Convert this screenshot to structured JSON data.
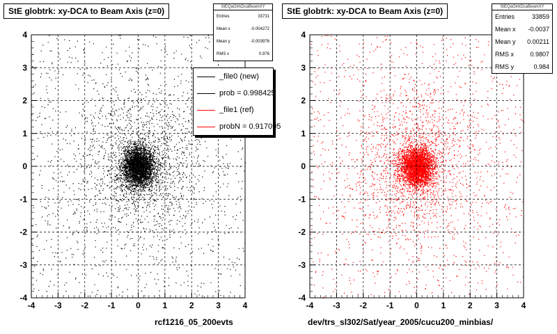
{
  "chart_data": [
    {
      "type": "scatter",
      "title": "StE globtrk: xy-DCA to Beam Axis (z=0)",
      "xlim": [
        -4,
        4
      ],
      "ylim": [
        -4,
        4
      ],
      "x_ticks": [
        "-4",
        "-3",
        "-2",
        "-1",
        "0",
        "1",
        "2",
        "3",
        "4"
      ],
      "y_ticks": [
        "-4",
        "-3",
        "-2",
        "-1",
        "0",
        "1",
        "2",
        "3",
        "4"
      ],
      "grid": true,
      "point_color": "#000000",
      "distribution": {
        "center_x": 0,
        "center_y": 0,
        "core_sigma": 0.3,
        "halo_sigma": 1.2
      },
      "stats": {
        "name": "StEQaGtrkDcaBeamXY",
        "rows": [
          {
            "label": "Entries",
            "value": "33731"
          },
          {
            "label": "Mean x",
            "value": "-0.004272"
          },
          {
            "label": "Mean y",
            "value": "-0.003976"
          },
          {
            "label": "RMS x",
            "value": "0.976"
          }
        ]
      },
      "legend": [
        {
          "text": "_file0 (new)",
          "color": "#000000"
        },
        {
          "text": "prob = 0.998425",
          "color": "#000000"
        },
        {
          "text": "_file1 (ref)",
          "color": "#ff0000"
        },
        {
          "text": "probN = 0.917095",
          "color": "#ff0000"
        }
      ],
      "footer": "rcf1216_05_200evts"
    },
    {
      "type": "scatter",
      "title": "StE globtrk: xy-DCA to Beam Axis (z=0)",
      "xlim": [
        -4,
        4
      ],
      "ylim": [
        -4,
        4
      ],
      "x_ticks": [
        "-4",
        "-3",
        "-2",
        "-1",
        "0",
        "1",
        "2",
        "3",
        "4"
      ],
      "y_ticks": [
        "-4",
        "-3",
        "-2",
        "-1",
        "0",
        "1",
        "2",
        "3",
        "4"
      ],
      "grid": true,
      "point_color": "#ff0000",
      "distribution": {
        "center_x": 0,
        "center_y": 0,
        "core_sigma": 0.3,
        "halo_sigma": 1.2
      },
      "stats": {
        "name": "StEQaGtrkDcaBeamXY",
        "rows": [
          {
            "label": "Entries",
            "value": "33859"
          },
          {
            "label": "Mean x",
            "value": "-0.0037"
          },
          {
            "label": "Mean y",
            "value": "0.00211"
          },
          {
            "label": "RMS x",
            "value": "0.9807"
          },
          {
            "label": "RMS y",
            "value": "0.984"
          }
        ]
      },
      "footer": "dev/trs_sl302/Sat/year_2005/cucu200_minbias/"
    }
  ]
}
